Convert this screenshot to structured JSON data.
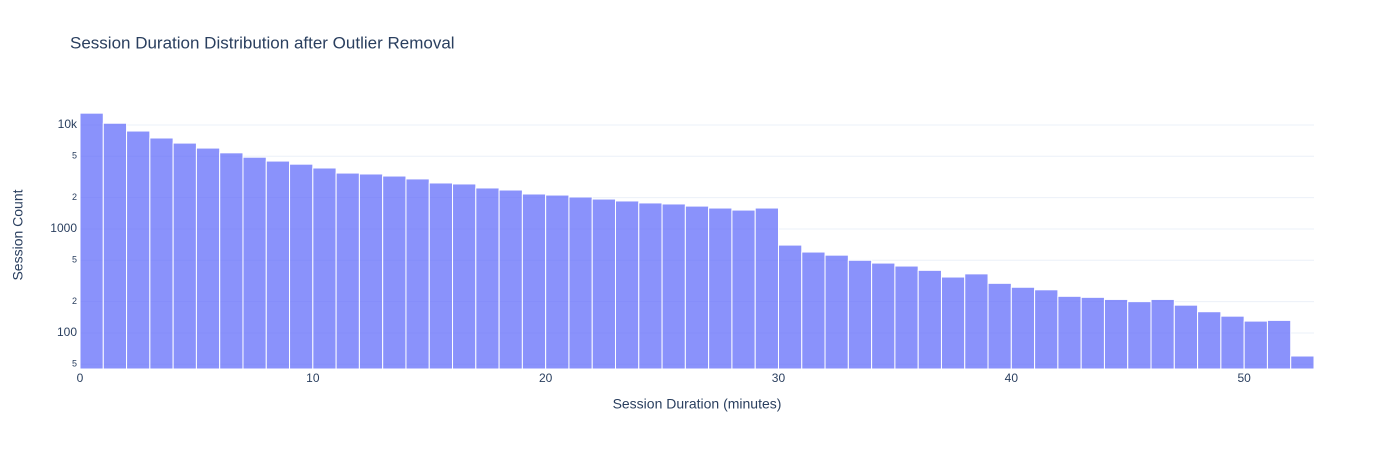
{
  "chart_data": {
    "type": "histogram",
    "title": "Session Duration Distribution after Outlier Removal",
    "x_label": "Session Duration (minutes)",
    "y_label": "Session Count",
    "bins": [
      0,
      1,
      2,
      3,
      4,
      5,
      6,
      7,
      8,
      9,
      10,
      11,
      12,
      13,
      14,
      15,
      16,
      17,
      18,
      19,
      20,
      21,
      22,
      23,
      24,
      25,
      26,
      27,
      28,
      29,
      30,
      31,
      32,
      33,
      34,
      35,
      36,
      37,
      38,
      39,
      40,
      41,
      42,
      43,
      44,
      45,
      46,
      47,
      48,
      49,
      50,
      51,
      52,
      53
    ],
    "values": [
      13000,
      10400,
      8750,
      7500,
      6700,
      6000,
      5400,
      4900,
      4500,
      4200,
      3860,
      3450,
      3380,
      3230,
      3030,
      2770,
      2710,
      2480,
      2370,
      2170,
      2120,
      2030,
      1940,
      1860,
      1780,
      1740,
      1660,
      1590,
      1520,
      1590,
      700,
      600,
      560,
      500,
      470,
      440,
      400,
      345,
      370,
      300,
      275,
      260,
      225,
      220,
      210,
      200,
      210,
      185,
      160,
      145,
      130,
      132,
      60
    ],
    "color": "#636efa",
    "xlim": [
      0,
      53
    ],
    "xticks": [
      0,
      10,
      20,
      30,
      40,
      50
    ],
    "ylim": [
      45,
      17400
    ],
    "y_scale": "log",
    "yticks": [
      {
        "value": 50,
        "label": "5"
      },
      100,
      {
        "value": 200,
        "label": "2"
      },
      {
        "value": 500,
        "label": "5"
      },
      1000,
      {
        "value": 2000,
        "label": "2"
      },
      {
        "value": 5000,
        "label": "5"
      },
      {
        "value": 10000,
        "label": "10k"
      }
    ],
    "grid": true
  }
}
